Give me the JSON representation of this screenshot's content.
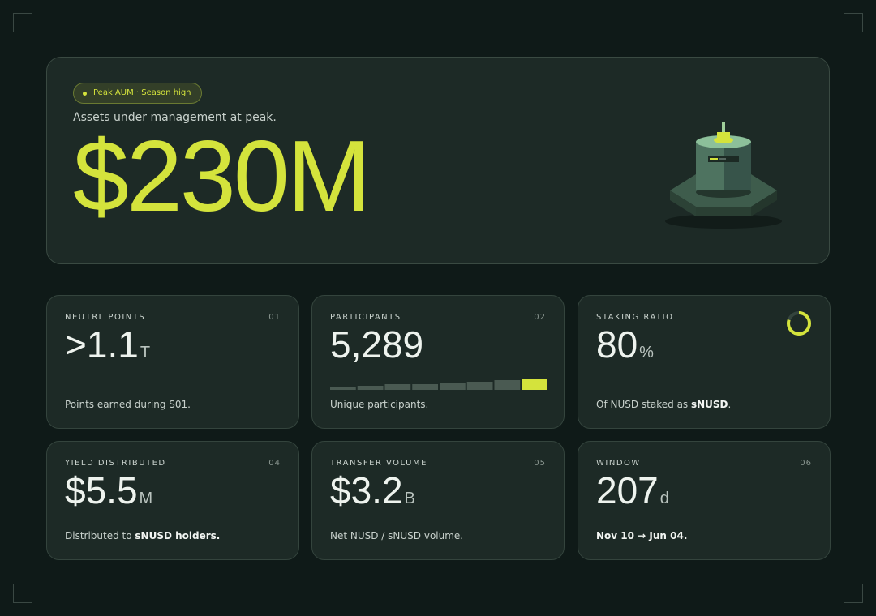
{
  "hero": {
    "badge": "Peak AUM · Season high",
    "subtitle": "Assets under management at peak.",
    "value": "$230M"
  },
  "cards": [
    {
      "label": "NEUTRL POINTS",
      "index": "01",
      "value": ">1.1",
      "unit": "T",
      "caption": [
        "Points earned during S01."
      ],
      "caption_bold": [
        false
      ]
    },
    {
      "label": "PARTICIPANTS",
      "index": "02",
      "value": "5,289",
      "unit": null,
      "bars": [
        4,
        5,
        7,
        7,
        8,
        10,
        12,
        14
      ],
      "bar_colors": [
        "#4a5a52",
        "#4a5a52",
        "#4a5a52",
        "#4a5a52",
        "#4a5a52",
        "#4a5a52",
        "#4a5a52",
        "#d4e33c"
      ],
      "caption": [
        "Unique participants."
      ],
      "caption_bold": [
        false
      ]
    },
    {
      "label": "STAKING RATIO",
      "index": null,
      "value": 80,
      "unit": "%",
      "ring_color": "#d4e33c",
      "caption": [
        "Of NUSD staked as ",
        "sNUSD",
        "."
      ],
      "caption_bold": [
        false,
        true,
        false
      ]
    },
    {
      "label": "YIELD DISTRIBUTED",
      "index": "04",
      "value": "$5.5",
      "unit": "M",
      "caption": [
        "Distributed to ",
        "sNUSD holders."
      ],
      "caption_bold": [
        false,
        true
      ]
    },
    {
      "label": "TRANSFER VOLUME",
      "index": "05",
      "value": "$3.2",
      "unit": "B",
      "caption": [
        "Net NUSD / sNUSD volume."
      ],
      "caption_bold": [
        false
      ]
    },
    {
      "label": "WINDOW",
      "index": "06",
      "value": "207",
      "unit": "d",
      "caption": [
        "Nov 10 → Jun 04."
      ],
      "caption_bold": [
        true
      ]
    }
  ]
}
